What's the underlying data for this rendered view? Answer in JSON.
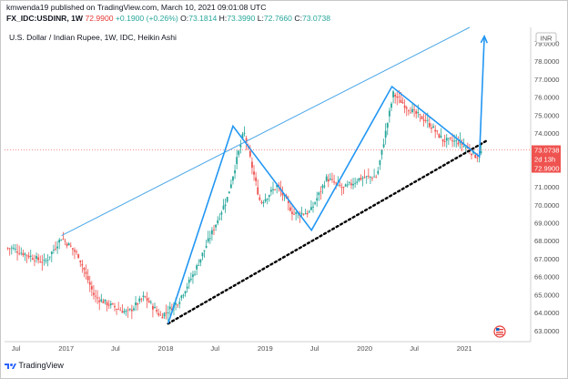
{
  "header": {
    "publisher_line": "kmwenda19 published on TradingView.com, March 10, 2021 09:01:08 UTC",
    "ohlc_line": {
      "symbol": "FX_IDC:USDINR, 1W",
      "last": "72.9900",
      "change": "+0.1900 (+0.26%)",
      "open_label": "O:",
      "open": "73.1814",
      "high_label": "H:",
      "high": "73.3990",
      "low_label": "L:",
      "low": "72.7660",
      "close_label": "C:",
      "close": "73.0738"
    }
  },
  "colors": {
    "up": "#26a69a",
    "down": "#ef5350",
    "trendline": "#4aa6e8",
    "zigzag": "#2196f3",
    "support": "#000000",
    "price_label_bg": "#ef5350",
    "header_up": "#26a69a",
    "header_down": "#e53935"
  },
  "chart_data": {
    "type": "candlestick",
    "title": "U.S. Dollar / Indian Rupee, 1W, IDC, Heikin Ashi",
    "currency_label": "INR",
    "y_ticks": [
      63,
      64,
      65,
      66,
      67,
      68,
      69,
      70,
      71,
      72,
      73,
      74,
      75,
      76,
      77,
      78,
      79
    ],
    "ylim": [
      62.8,
      79.9
    ],
    "x_tick_labels": [
      "Jul",
      "2017",
      "Jul",
      "2018",
      "Jul",
      "2019",
      "Jul",
      "2020",
      "Jul",
      "2021"
    ],
    "x_tick_dates": [
      "2016-07-01",
      "2017-01-01",
      "2017-07-01",
      "2018-01-01",
      "2018-07-01",
      "2019-01-01",
      "2019-07-01",
      "2020-01-01",
      "2020-07-01",
      "2021-01-01"
    ],
    "price_labels": [
      {
        "value": 73.0738,
        "text": "73.0738"
      },
      {
        "value": 72.99,
        "text": "2d 13h"
      },
      {
        "value": 72.99,
        "text": "72.9900"
      }
    ],
    "candles_approx": {
      "note_dates": [
        "2016-06",
        "2016-08",
        "2016-10",
        "2016-12",
        "2017-02",
        "2017-04",
        "2017-06",
        "2017-08",
        "2017-10",
        "2017-12",
        "2018-02",
        "2018-04",
        "2018-06",
        "2018-08",
        "2018-10",
        "2018-12",
        "2019-02",
        "2019-04",
        "2019-06",
        "2019-08",
        "2019-10",
        "2019-12",
        "2020-02",
        "2020-04",
        "2020-06",
        "2020-08",
        "2020-10",
        "2020-12",
        "2021-02",
        "2021-03"
      ],
      "note_closes": [
        67.6,
        67.2,
        66.8,
        68.2,
        67.2,
        64.9,
        64.4,
        64.0,
        64.9,
        63.8,
        64.6,
        66.2,
        68.3,
        70.4,
        74.1,
        70.1,
        71.1,
        69.5,
        69.6,
        71.5,
        70.9,
        71.5,
        71.6,
        76.2,
        75.3,
        74.7,
        73.6,
        73.5,
        72.7,
        73.1
      ]
    },
    "annotations": [
      {
        "kind": "trendline",
        "points": [
          [
            "2016-12-15",
            68.3
          ],
          [
            "2021-01-20",
            79.9
          ]
        ]
      },
      {
        "kind": "support_dotted",
        "points": [
          [
            "2018-01-10",
            63.4
          ],
          [
            "2021-03-25",
            73.6
          ]
        ]
      },
      {
        "kind": "zigzag",
        "points": [
          [
            "2018-01-10",
            63.4
          ],
          [
            "2018-09-05",
            74.4
          ],
          [
            "2019-06-20",
            68.6
          ],
          [
            "2020-04-10",
            76.6
          ],
          [
            "2021-02-25",
            72.7
          ],
          [
            "2021-03-15",
            79.4
          ]
        ]
      }
    ],
    "grid": false,
    "legend": "none"
  },
  "footer": {
    "brand": "TradingView"
  }
}
